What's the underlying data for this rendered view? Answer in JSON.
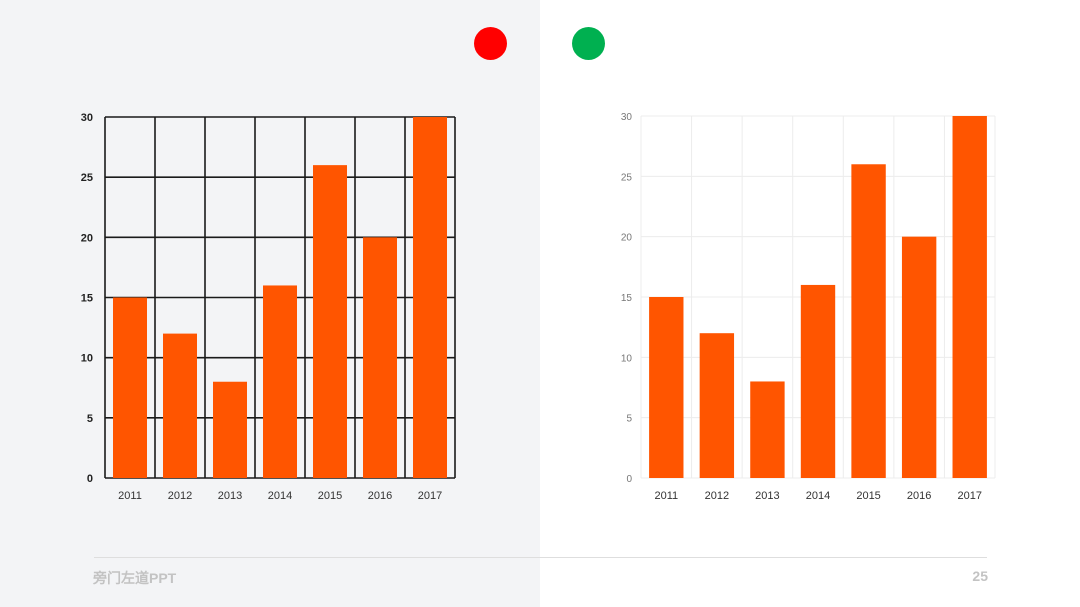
{
  "colors": {
    "bar": "#ff5500",
    "left_background": "#f3f4f6",
    "dot_bad": "#ff0000",
    "dot_good": "#00b050"
  },
  "chart_data": [
    {
      "type": "bar",
      "categories": [
        "2011",
        "2012",
        "2013",
        "2014",
        "2015",
        "2016",
        "2017"
      ],
      "values": [
        15,
        12,
        8,
        16,
        26,
        20,
        30
      ],
      "title": "",
      "xlabel": "",
      "ylabel": "",
      "ylim": [
        0,
        30
      ],
      "yticks": [
        0,
        5,
        10,
        15,
        20,
        25,
        30
      ],
      "grid": "heavy black gridlines",
      "legend": "none"
    },
    {
      "type": "bar",
      "categories": [
        "2011",
        "2012",
        "2013",
        "2014",
        "2015",
        "2016",
        "2017"
      ],
      "values": [
        15,
        12,
        8,
        16,
        26,
        20,
        30
      ],
      "title": "",
      "xlabel": "",
      "ylabel": "",
      "ylim": [
        0,
        30
      ],
      "yticks": [
        0,
        5,
        10,
        15,
        20,
        25,
        30
      ],
      "grid": "faint light-grey gridlines",
      "legend": "none"
    }
  ],
  "footer": {
    "brand": "旁门左道PPT",
    "page_number": "25"
  }
}
